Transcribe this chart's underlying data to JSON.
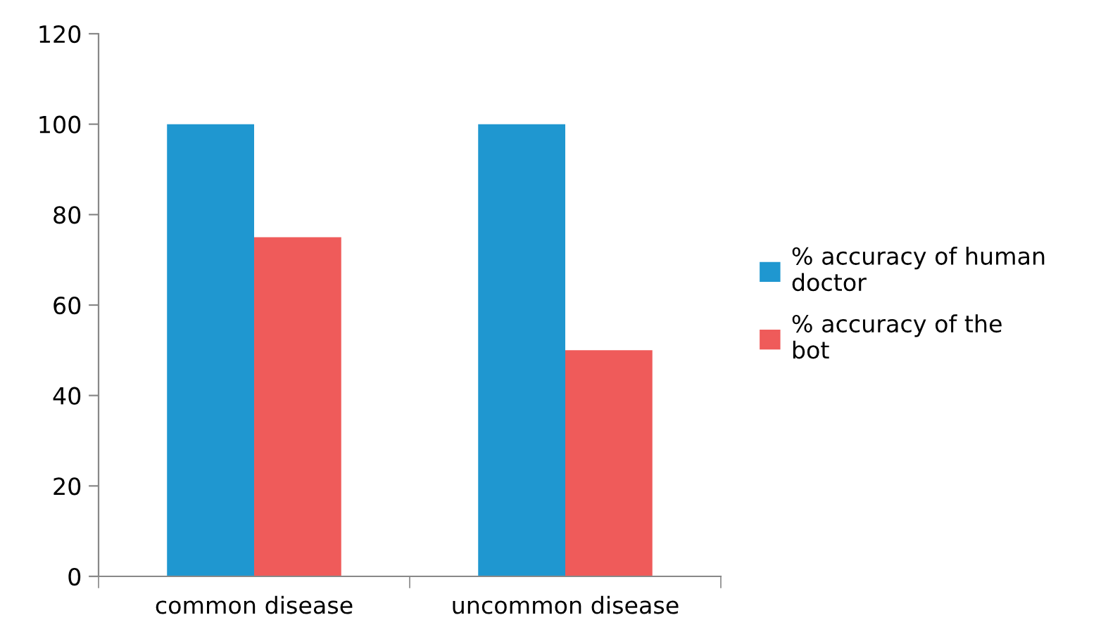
{
  "chart_data": {
    "type": "bar",
    "categories": [
      "common disease",
      "uncommon disease"
    ],
    "series": [
      {
        "name": "% accuracy of human doctor",
        "color": "#1f97d0",
        "values": [
          100,
          100
        ]
      },
      {
        "name": "% accuracy of the bot",
        "color": "#ef5b5a",
        "values": [
          75,
          50
        ]
      }
    ],
    "ylim": [
      0,
      120
    ],
    "yticks": [
      0,
      20,
      40,
      60,
      80,
      100,
      120
    ],
    "grid": false,
    "legend": "right"
  }
}
